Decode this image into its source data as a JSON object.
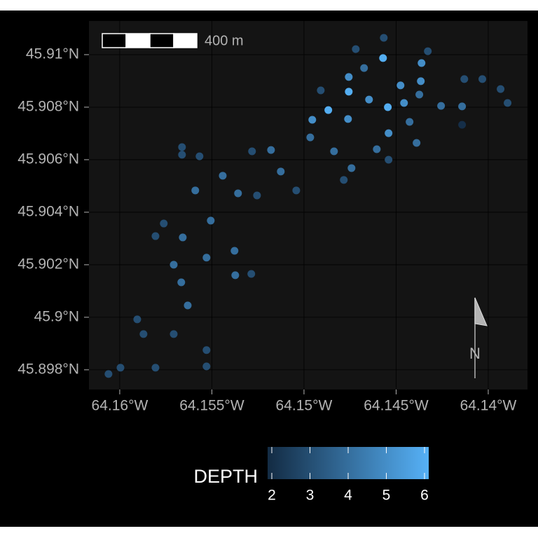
{
  "chart_data": {
    "type": "scatter",
    "x": [
      -64.16061,
      -64.15996,
      -64.15806,
      -64.15529,
      -64.15529,
      -64.15871,
      -64.15707,
      -64.15905,
      -64.15631,
      -64.15666,
      -64.15373,
      -64.15286,
      -64.15707,
      -64.15529,
      -64.15377,
      -64.15806,
      -64.15658,
      -64.15761,
      -64.15506,
      -64.1559,
      -64.15358,
      -64.15255,
      -64.15042,
      -64.15441,
      -64.15126,
      -64.15662,
      -64.15662,
      -64.15567,
      -64.15282,
      -64.15179,
      -64.14966,
      -64.14837,
      -64.14742,
      -64.14784,
      -64.14605,
      -64.14541,
      -64.14955,
      -64.14868,
      -64.14761,
      -64.14909,
      -64.14757,
      -64.14647,
      -64.14757,
      -64.14674,
      -64.14719,
      -64.14567,
      -64.14571,
      -64.14545,
      -64.14541,
      -64.14457,
      -64.14476,
      -64.14427,
      -64.14389,
      -64.14374,
      -64.14366,
      -64.14362,
      -64.14328,
      -64.14256,
      -64.14142,
      -64.1413,
      -64.14142,
      -64.14032,
      -64.13933,
      -64.13895
    ],
    "y": [
      45.89784,
      45.89808,
      45.89808,
      45.89813,
      45.89875,
      45.89936,
      45.89936,
      45.89992,
      45.90045,
      45.90133,
      45.9016,
      45.90165,
      45.902,
      45.90227,
      45.90253,
      45.90309,
      45.90304,
      45.90357,
      45.90368,
      45.90483,
      45.90472,
      45.90464,
      45.90483,
      45.90539,
      45.90555,
      45.90648,
      45.90619,
      45.90613,
      45.90632,
      45.90637,
      45.90685,
      45.90632,
      45.90568,
      45.90523,
      45.9064,
      45.906,
      45.90752,
      45.90789,
      45.90755,
      45.90864,
      45.90859,
      45.90829,
      45.90915,
      45.90949,
      45.91021,
      45.91064,
      45.90987,
      45.908,
      45.90701,
      45.90816,
      45.90883,
      45.90744,
      45.90664,
      45.90848,
      45.90899,
      45.90968,
      45.91013,
      45.90805,
      45.90803,
      45.90907,
      45.90733,
      45.90907,
      45.90869,
      45.90816
    ],
    "depth": [
      3,
      3,
      3,
      3,
      3,
      3,
      3,
      3,
      4,
      4,
      4,
      3,
      4,
      4,
      4,
      3,
      4,
      3,
      4,
      4,
      4,
      3,
      3,
      4,
      4,
      3,
      3,
      3,
      3,
      4,
      4,
      4,
      4,
      3,
      4,
      3,
      5,
      6,
      5,
      3,
      6,
      5,
      5,
      4,
      3,
      3,
      6,
      6,
      5,
      5,
      5,
      4,
      4,
      4,
      5,
      5,
      3,
      4,
      4,
      3,
      2,
      3,
      3,
      3
    ],
    "xlim": [
      -64.16167,
      -64.13787
    ],
    "ylim": [
      45.89725,
      45.91128
    ],
    "xticks": [
      {
        "value": -64.16,
        "label": "64.16°W"
      },
      {
        "value": -64.155,
        "label": "64.155°W"
      },
      {
        "value": -64.15,
        "label": "64.15°W"
      },
      {
        "value": -64.145,
        "label": "64.145°W"
      },
      {
        "value": -64.14,
        "label": "64.14°W"
      }
    ],
    "yticks": [
      {
        "value": 45.898,
        "label": "45.898°N"
      },
      {
        "value": 45.9,
        "label": "45.9°N"
      },
      {
        "value": 45.902,
        "label": "45.902°N"
      },
      {
        "value": 45.904,
        "label": "45.904°N"
      },
      {
        "value": 45.906,
        "label": "45.906°N"
      },
      {
        "value": 45.908,
        "label": "45.908°N"
      },
      {
        "value": 45.91,
        "label": "45.91°N"
      }
    ],
    "grid": true,
    "legend_title": "DEPTH",
    "colorbar": {
      "lim": [
        1.89,
        6.11
      ],
      "ticks": [
        2,
        3,
        4,
        5,
        6
      ],
      "low": "#132B43",
      "high": "#56B1F7"
    },
    "scale_bar_label": "400 m",
    "north_label": "N"
  }
}
